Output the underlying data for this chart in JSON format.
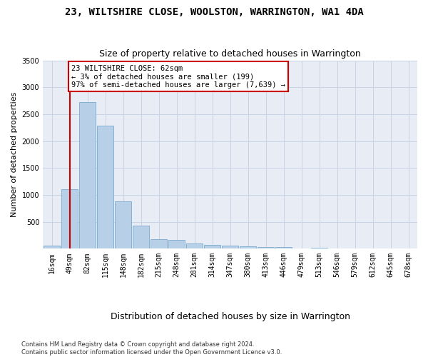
{
  "title": "23, WILTSHIRE CLOSE, WOOLSTON, WARRINGTON, WA1 4DA",
  "subtitle": "Size of property relative to detached houses in Warrington",
  "xlabel": "Distribution of detached houses by size in Warrington",
  "ylabel": "Number of detached properties",
  "bar_color": "#b8cfe8",
  "bar_edge_color": "#7aaad0",
  "grid_color": "#c8d4e4",
  "background_color": "#e8ecf4",
  "property_line_color": "#cc0000",
  "annotation_box_color": "#cc0000",
  "categories": [
    "16sqm",
    "49sqm",
    "82sqm",
    "115sqm",
    "148sqm",
    "182sqm",
    "215sqm",
    "248sqm",
    "281sqm",
    "314sqm",
    "347sqm",
    "380sqm",
    "413sqm",
    "446sqm",
    "479sqm",
    "513sqm",
    "546sqm",
    "579sqm",
    "612sqm",
    "645sqm",
    "678sqm"
  ],
  "values": [
    55,
    1100,
    2730,
    2290,
    880,
    430,
    170,
    165,
    95,
    65,
    55,
    40,
    35,
    25,
    0,
    20,
    0,
    0,
    0,
    0,
    0
  ],
  "property_line_x": 1.0,
  "annotation_text": "23 WILTSHIRE CLOSE: 62sqm\n← 3% of detached houses are smaller (199)\n97% of semi-detached houses are larger (7,639) →",
  "ylim": [
    0,
    3500
  ],
  "yticks": [
    0,
    500,
    1000,
    1500,
    2000,
    2500,
    3000,
    3500
  ],
  "footnote": "Contains HM Land Registry data © Crown copyright and database right 2024.\nContains public sector information licensed under the Open Government Licence v3.0.",
  "title_fontsize": 10,
  "subtitle_fontsize": 9,
  "ylabel_fontsize": 8,
  "xlabel_fontsize": 9,
  "tick_fontsize": 7,
  "annotation_fontsize": 7.5,
  "footnote_fontsize": 6
}
